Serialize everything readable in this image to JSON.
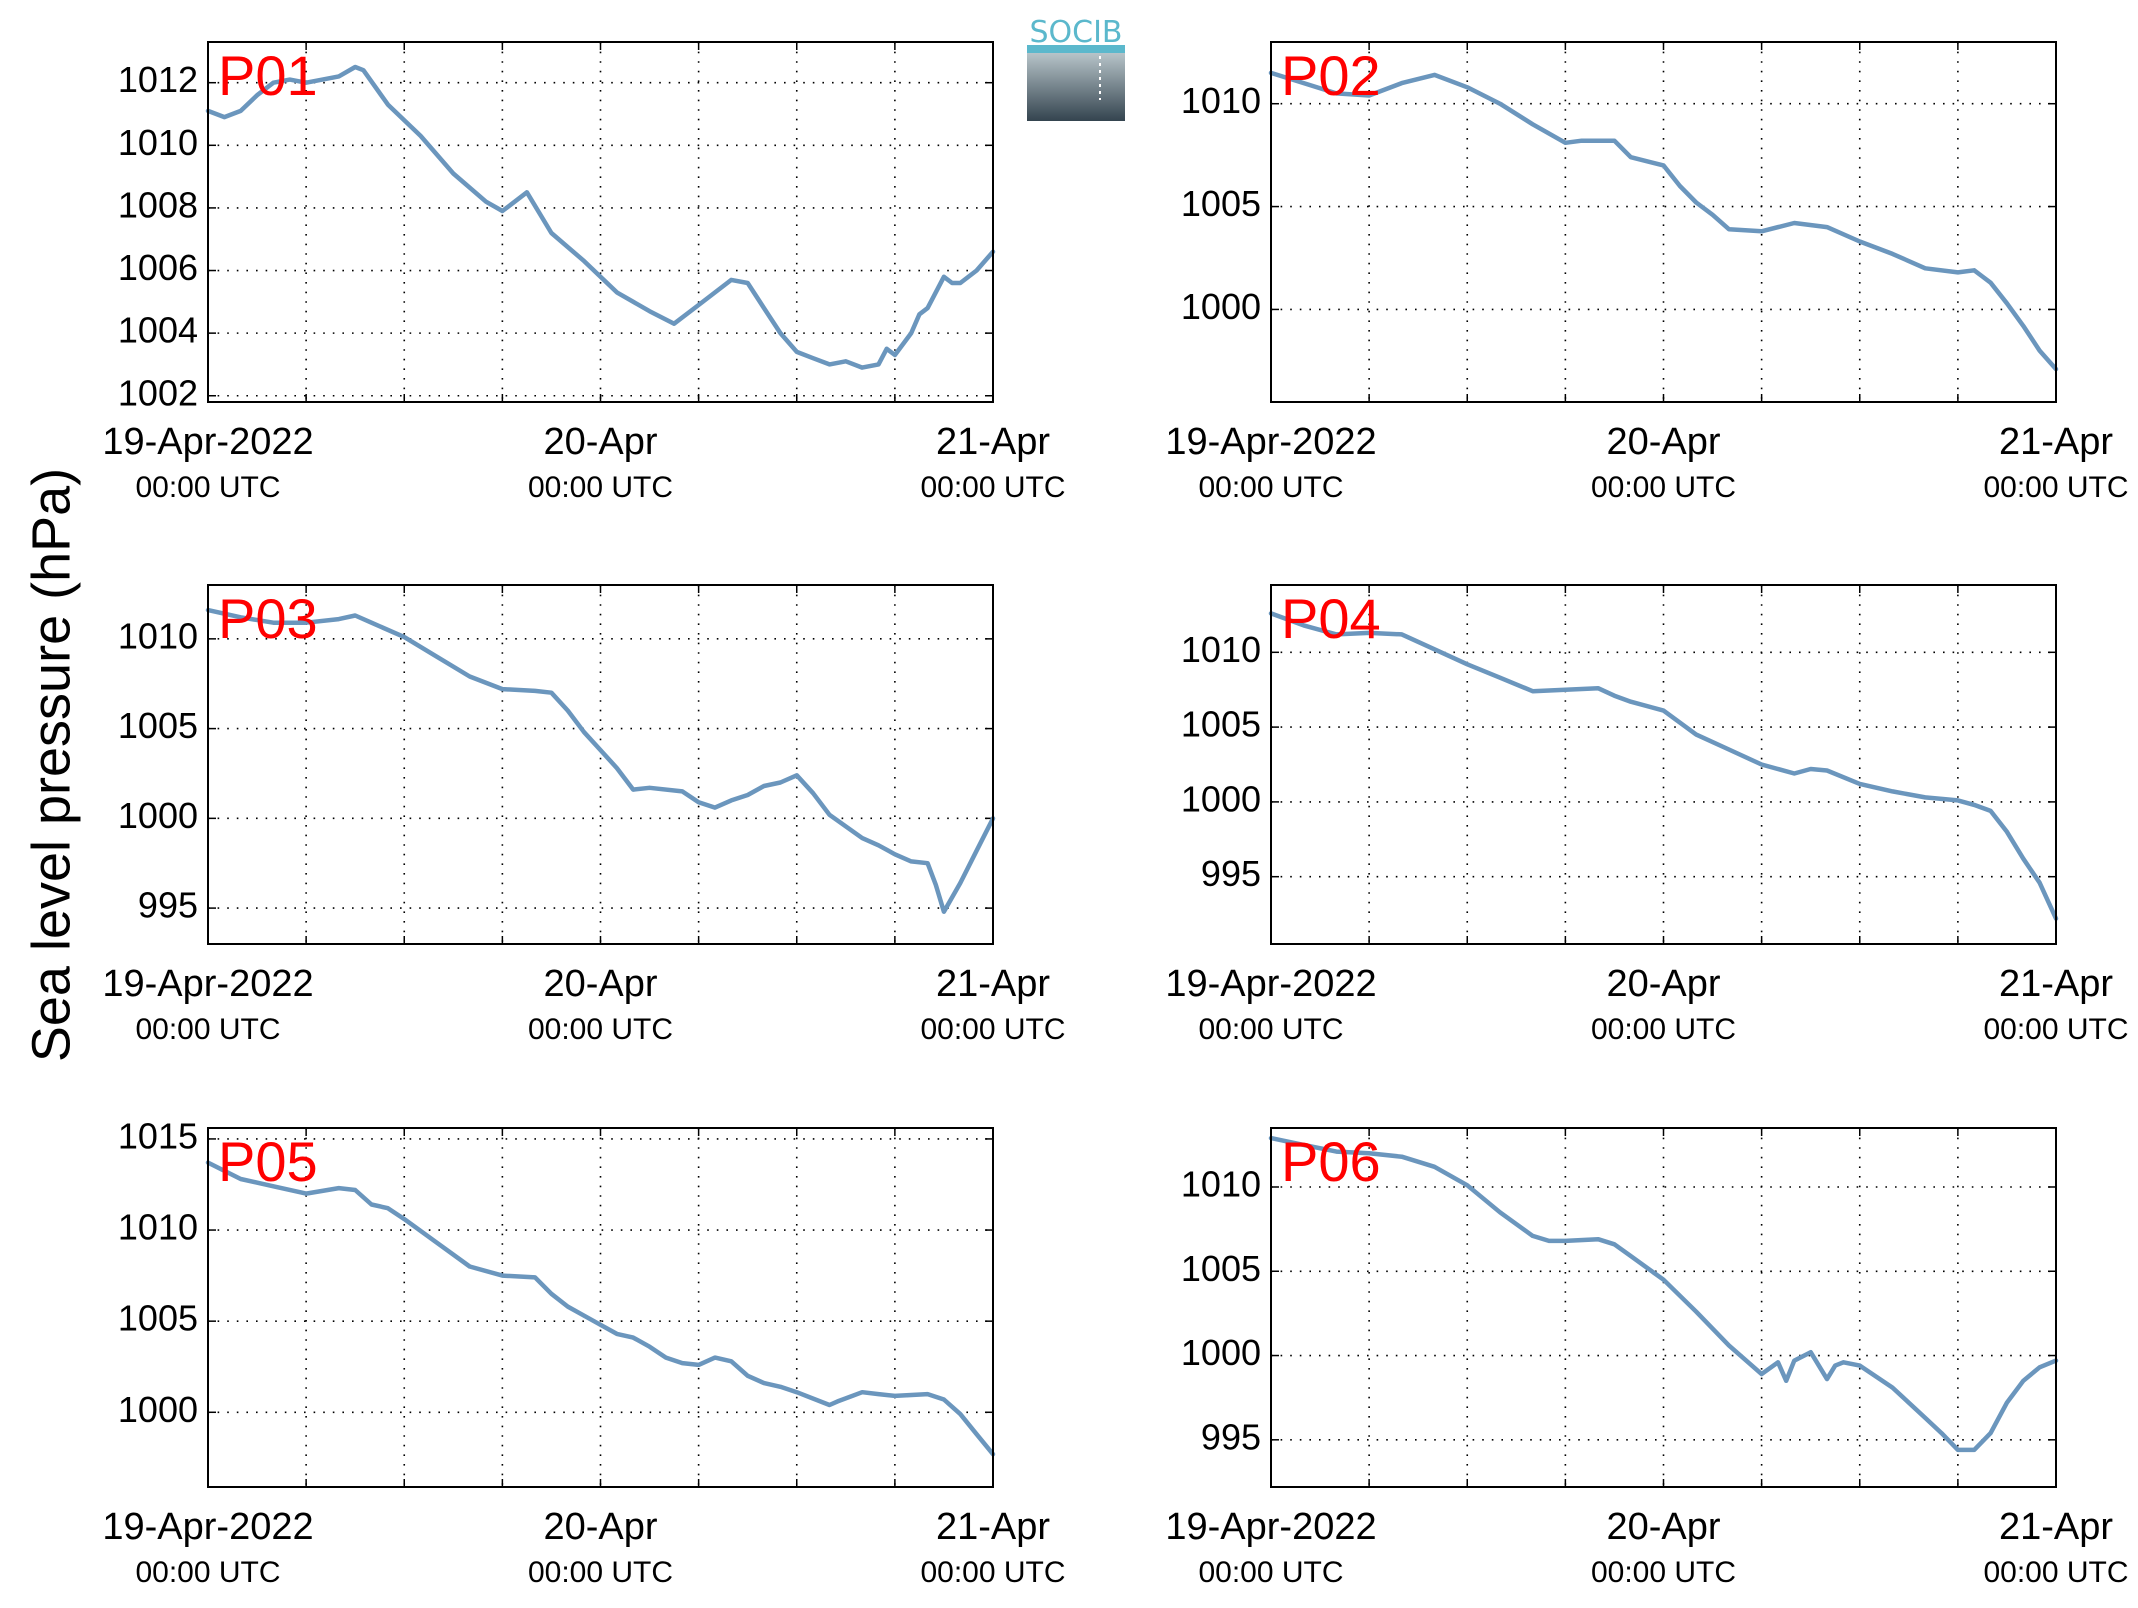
{
  "ylabel": "Sea level pressure (hPa)",
  "logo": {
    "text": "SOCIB",
    "color": "#5bb8cc"
  },
  "line_color": "#6b96bd",
  "label_color": "#ff0000",
  "x_ticks": [
    {
      "main": "19-Apr-2022",
      "sub": "00:00 UTC",
      "hours": 0
    },
    {
      "main": "20-Apr",
      "sub": "00:00 UTC",
      "hours": 24
    },
    {
      "main": "21-Apr",
      "sub": "00:00 UTC",
      "hours": 48
    }
  ],
  "chart_data": [
    {
      "type": "line",
      "name": "P01",
      "xlim": [
        0,
        48
      ],
      "ylim": [
        1001.8,
        1013.3
      ],
      "yticks": [
        1002,
        1004,
        1006,
        1008,
        1010,
        1012
      ],
      "x": [
        0,
        1,
        2,
        3,
        4,
        5,
        6,
        7,
        8,
        9,
        9.5,
        11,
        13,
        15,
        17,
        18,
        18.5,
        19.5,
        21,
        23,
        25,
        27,
        28.5,
        30,
        32,
        33,
        34,
        35,
        36,
        37,
        38,
        39,
        40,
        41,
        41.5,
        42,
        43,
        43.5,
        44,
        45,
        45.5,
        46,
        47,
        48
      ],
      "y": [
        1011.1,
        1010.9,
        1011.1,
        1011.6,
        1012.0,
        1012.1,
        1012.0,
        1012.1,
        1012.2,
        1012.5,
        1012.4,
        1011.3,
        1010.3,
        1009.1,
        1008.2,
        1007.9,
        1008.1,
        1008.5,
        1007.2,
        1006.3,
        1005.3,
        1004.7,
        1004.3,
        1004.9,
        1005.7,
        1005.6,
        1004.8,
        1004.0,
        1003.4,
        1003.2,
        1003.0,
        1003.1,
        1002.9,
        1003.0,
        1003.5,
        1003.3,
        1004.0,
        1004.6,
        1004.8,
        1005.8,
        1005.6,
        1005.6,
        1006.0,
        1006.6
      ]
    },
    {
      "type": "line",
      "name": "P02",
      "xlim": [
        0,
        48
      ],
      "ylim": [
        995.5,
        1013.0
      ],
      "yticks": [
        1000,
        1005,
        1010
      ],
      "x": [
        0,
        2,
        4,
        6,
        8,
        10,
        12,
        14,
        16,
        18,
        19,
        21,
        22,
        24,
        25,
        26,
        27,
        28,
        30,
        32,
        34,
        36,
        38,
        40,
        42,
        43,
        43.5,
        44,
        45,
        46,
        47,
        48
      ],
      "y": [
        1011.5,
        1011.0,
        1010.5,
        1010.4,
        1011.0,
        1011.4,
        1010.8,
        1010.0,
        1009.0,
        1008.1,
        1008.2,
        1008.2,
        1007.4,
        1007.0,
        1006.0,
        1005.2,
        1004.6,
        1003.9,
        1003.8,
        1004.2,
        1004.0,
        1003.3,
        1002.7,
        1002.0,
        1001.8,
        1001.9,
        1001.6,
        1001.3,
        1000.3,
        999.2,
        998.0,
        997.1
      ]
    },
    {
      "type": "line",
      "name": "P03",
      "xlim": [
        0,
        48
      ],
      "ylim": [
        993.0,
        1013.0
      ],
      "yticks": [
        995,
        1000,
        1005,
        1010
      ],
      "x": [
        0,
        2,
        4,
        6,
        8,
        9,
        10,
        12,
        14,
        16,
        18,
        20,
        21,
        22,
        23,
        24,
        25,
        26,
        27,
        29,
        30,
        31,
        32,
        33,
        34,
        35,
        36,
        37,
        38,
        40,
        41,
        42,
        43,
        44,
        44.5,
        45,
        46,
        47,
        48
      ],
      "y": [
        1011.6,
        1011.2,
        1010.9,
        1010.9,
        1011.1,
        1011.3,
        1010.9,
        1010.1,
        1009.0,
        1007.9,
        1007.2,
        1007.1,
        1007.0,
        1006.0,
        1004.8,
        1003.8,
        1002.8,
        1001.6,
        1001.7,
        1001.5,
        1000.9,
        1000.6,
        1001.0,
        1001.3,
        1001.8,
        1002.0,
        1002.4,
        1001.4,
        1000.2,
        998.9,
        998.5,
        998.0,
        997.6,
        997.5,
        996.3,
        994.8,
        996.4,
        998.2,
        1000.0
      ]
    },
    {
      "type": "line",
      "name": "P04",
      "xlim": [
        0,
        48
      ],
      "ylim": [
        990.5,
        1014.5
      ],
      "yticks": [
        995,
        1000,
        1005,
        1010
      ],
      "x": [
        0,
        2,
        4,
        6,
        8,
        10,
        12,
        14,
        16,
        18,
        20,
        21,
        22,
        24,
        26,
        28,
        30,
        32,
        33,
        34,
        36,
        38,
        40,
        42,
        43,
        44,
        45,
        46,
        47,
        48
      ],
      "y": [
        1012.6,
        1011.8,
        1011.2,
        1011.3,
        1011.2,
        1010.2,
        1009.2,
        1008.3,
        1007.4,
        1007.5,
        1007.6,
        1007.1,
        1006.7,
        1006.1,
        1004.5,
        1003.5,
        1002.5,
        1001.9,
        1002.2,
        1002.1,
        1001.2,
        1000.7,
        1000.3,
        1000.1,
        999.8,
        999.4,
        998.0,
        996.2,
        994.6,
        992.2
      ]
    },
    {
      "type": "line",
      "name": "P05",
      "xlim": [
        0,
        48
      ],
      "ylim": [
        995.9,
        1015.6
      ],
      "yticks": [
        1000,
        1005,
        1010,
        1015
      ],
      "x": [
        0,
        2,
        4,
        6,
        8,
        9,
        10,
        11,
        12,
        14,
        16,
        18,
        20,
        21,
        22,
        23,
        24,
        25,
        26,
        27,
        28,
        29,
        30,
        31,
        32,
        33,
        34,
        35,
        36,
        38,
        38.5,
        40,
        41,
        42,
        44,
        45,
        46,
        47,
        48
      ],
      "y": [
        1013.7,
        1012.8,
        1012.4,
        1012.0,
        1012.3,
        1012.2,
        1011.4,
        1011.2,
        1010.6,
        1009.3,
        1008.0,
        1007.5,
        1007.4,
        1006.5,
        1005.8,
        1005.3,
        1004.8,
        1004.3,
        1004.1,
        1003.6,
        1003.0,
        1002.7,
        1002.6,
        1003.0,
        1002.8,
        1002.0,
        1001.6,
        1001.4,
        1001.1,
        1000.4,
        1000.6,
        1001.1,
        1001.0,
        1000.9,
        1001.0,
        1000.7,
        999.9,
        998.8,
        997.7
      ]
    },
    {
      "type": "line",
      "name": "P06",
      "xlim": [
        0,
        48
      ],
      "ylim": [
        992.2,
        1013.5
      ],
      "yticks": [
        995,
        1000,
        1005,
        1010
      ],
      "x": [
        0,
        2,
        4,
        6,
        8,
        10,
        12,
        14,
        16,
        17,
        18,
        20,
        21,
        22,
        24,
        26,
        28,
        30,
        31,
        31.5,
        32,
        33,
        34,
        34.5,
        35,
        36,
        38,
        40,
        41,
        42,
        43,
        44,
        45,
        46,
        47,
        48
      ],
      "y": [
        1012.9,
        1012.5,
        1012.1,
        1012.0,
        1011.8,
        1011.2,
        1010.1,
        1008.5,
        1007.1,
        1006.8,
        1006.8,
        1006.9,
        1006.6,
        1005.9,
        1004.5,
        1002.6,
        1000.6,
        998.9,
        999.6,
        998.5,
        999.7,
        1000.2,
        998.6,
        999.4,
        999.6,
        999.4,
        998.1,
        996.3,
        995.4,
        994.4,
        994.4,
        995.4,
        997.2,
        998.5,
        999.3,
        999.7
      ]
    }
  ]
}
